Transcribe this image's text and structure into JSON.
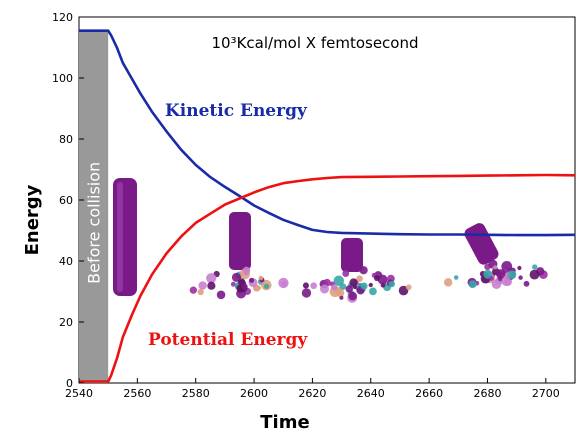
{
  "chart_data": {
    "type": "line",
    "unit_label": "10³Kcal/mol X femtosecond",
    "xlabel": "Time",
    "ylabel": "Energy",
    "xlim": [
      2540,
      2710
    ],
    "ylim": [
      0,
      120
    ],
    "x_ticks": [
      "2540",
      "2560",
      "2580",
      "2600",
      "2620",
      "2640",
      "2660",
      "2680",
      "2700"
    ],
    "y_ticks": [
      "0",
      "20",
      "40",
      "60",
      "80",
      "100",
      "120"
    ],
    "band": {
      "label": "Before collision",
      "x_start": 2540,
      "x_end": 2550,
      "color": "#999999"
    },
    "series": [
      {
        "name": "Kinetic Energy",
        "color": "#1a2ba8",
        "x": [
          2540,
          2550,
          2551,
          2553,
          2555,
          2558,
          2561,
          2565,
          2570,
          2575,
          2580,
          2585,
          2590,
          2595,
          2600,
          2605,
          2610,
          2615,
          2620,
          2625,
          2630,
          2640,
          2650,
          2660,
          2670,
          2680,
          2690,
          2700,
          2710
        ],
        "y": [
          115.5,
          115.5,
          114,
          110,
          105,
          100,
          95,
          89,
          82.5,
          76.5,
          71.5,
          67.5,
          64.3,
          61.3,
          58.2,
          55.8,
          53.5,
          51.8,
          50.2,
          49.5,
          49.2,
          49,
          48.8,
          48.7,
          48.7,
          48.6,
          48.5,
          48.5,
          48.6
        ]
      },
      {
        "name": "Potential Energy",
        "color": "#ee1111",
        "x": [
          2540,
          2550,
          2551,
          2553,
          2555,
          2558,
          2561,
          2565,
          2570,
          2575,
          2580,
          2585,
          2590,
          2595,
          2600,
          2605,
          2610,
          2615,
          2620,
          2625,
          2630,
          2640,
          2650,
          2660,
          2670,
          2680,
          2690,
          2700,
          2710
        ],
        "y": [
          0.5,
          0.5,
          2.5,
          8,
          15,
          22,
          28.5,
          35.5,
          42.5,
          48,
          52.5,
          55.5,
          58.5,
          60.5,
          62.5,
          64.2,
          65.5,
          66.2,
          66.8,
          67.2,
          67.5,
          67.6,
          67.7,
          67.8,
          67.9,
          68,
          68.1,
          68.2,
          68.1
        ]
      }
    ]
  }
}
